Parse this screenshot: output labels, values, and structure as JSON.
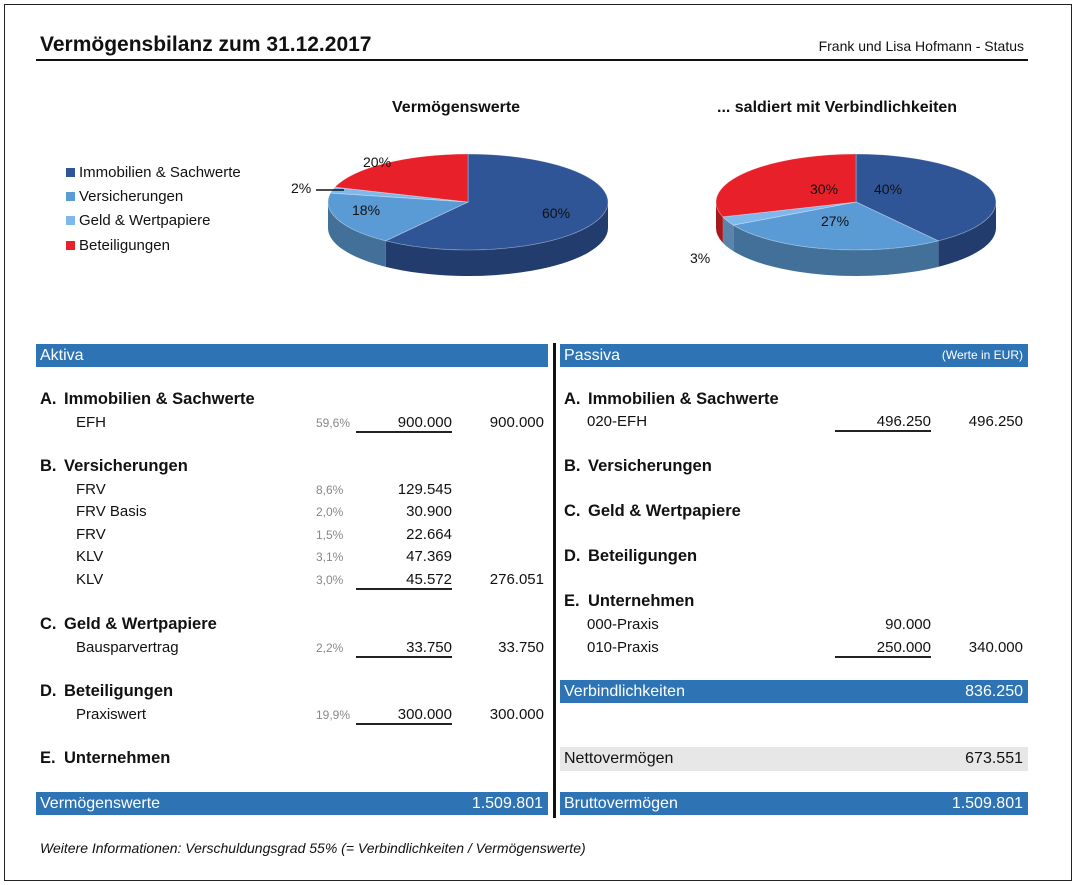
{
  "header": {
    "title": "Vermögensbilanz zum 31.12.2017",
    "subtitle": "Frank und Lisa Hofmann - Status"
  },
  "colors": {
    "dark_blue": "#2f5597",
    "mid_blue": "#5b9bd5",
    "light_blue": "#7fb8ec",
    "red": "#e8202a",
    "bar_blue": "#2e74b5"
  },
  "legend": [
    {
      "label": "Immobilien & Sachwerte",
      "color": "#2f5597"
    },
    {
      "label": "Versicherungen",
      "color": "#5b9bd5"
    },
    {
      "label": "Geld & Wertpapiere",
      "color": "#7fb8ec"
    },
    {
      "label": "Beteiligungen",
      "color": "#e8202a"
    }
  ],
  "chart_data": [
    {
      "type": "pie",
      "title": "Vermögenswerte",
      "categories": [
        "Immobilien & Sachwerte",
        "Versicherungen",
        "Geld & Wertpapiere",
        "Beteiligungen"
      ],
      "values": [
        60,
        18,
        2,
        20
      ],
      "labels": [
        "60%",
        "18%",
        "2%",
        "20%"
      ]
    },
    {
      "type": "pie",
      "title": "... saldiert mit Verbindlichkeiten",
      "categories": [
        "Immobilien & Sachwerte",
        "Versicherungen",
        "Geld & Wertpapiere",
        "Beteiligungen"
      ],
      "values": [
        40,
        27,
        3,
        30
      ],
      "labels": [
        "40%",
        "27%",
        "3%",
        "30%"
      ]
    }
  ],
  "aktiva": {
    "header": "Aktiva",
    "sections": [
      {
        "letter": "A.",
        "title": "Immobilien & Sachwerte",
        "rows": [
          {
            "label": "EFH",
            "pct": "59,6%",
            "value": "900.000",
            "sum": "900.000"
          }
        ]
      },
      {
        "letter": "B.",
        "title": "Versicherungen",
        "rows": [
          {
            "label": "FRV",
            "pct": "8,6%",
            "value": "129.545",
            "sum": ""
          },
          {
            "label": "FRV Basis",
            "pct": "2,0%",
            "value": "30.900",
            "sum": ""
          },
          {
            "label": "FRV",
            "pct": "1,5%",
            "value": "22.664",
            "sum": ""
          },
          {
            "label": "KLV",
            "pct": "3,1%",
            "value": "47.369",
            "sum": ""
          },
          {
            "label": "KLV",
            "pct": "3,0%",
            "value": "45.572",
            "sum": "276.051"
          }
        ]
      },
      {
        "letter": "C.",
        "title": "Geld & Wertpapiere",
        "rows": [
          {
            "label": "Bausparvertrag",
            "pct": "2,2%",
            "value": "33.750",
            "sum": "33.750"
          }
        ]
      },
      {
        "letter": "D.",
        "title": "Beteiligungen",
        "rows": [
          {
            "label": "Praxiswert",
            "pct": "19,9%",
            "value": "300.000",
            "sum": "300.000"
          }
        ]
      },
      {
        "letter": "E.",
        "title": "Unternehmen",
        "rows": []
      }
    ],
    "total_label": "Vermögenswerte",
    "total_value": "1.509.801"
  },
  "passiva": {
    "header": "Passiva",
    "unit": "(Werte in EUR)",
    "sections": [
      {
        "letter": "A.",
        "title": "Immobilien & Sachwerte",
        "rows": [
          {
            "label": "020-EFH",
            "value": "496.250",
            "sum": "496.250"
          }
        ]
      },
      {
        "letter": "B.",
        "title": "Versicherungen",
        "rows": []
      },
      {
        "letter": "C.",
        "title": "Geld & Wertpapiere",
        "rows": []
      },
      {
        "letter": "D.",
        "title": "Beteiligungen",
        "rows": []
      },
      {
        "letter": "E.",
        "title": "Unternehmen",
        "rows": [
          {
            "label": "000-Praxis",
            "value": "90.000",
            "sum": ""
          },
          {
            "label": "010-Praxis",
            "value": "250.000",
            "sum": "340.000"
          }
        ]
      }
    ],
    "liabilities_label": "Verbindlichkeiten",
    "liabilities_value": "836.250",
    "net_label": "Nettovermögen",
    "net_value": "673.551",
    "total_label": "Bruttovermögen",
    "total_value": "1.509.801"
  },
  "footer": {
    "text": "Weitere Informationen:  Verschuldungsgrad 55%  (= Verbindlichkeiten / Vermögenswerte)"
  }
}
